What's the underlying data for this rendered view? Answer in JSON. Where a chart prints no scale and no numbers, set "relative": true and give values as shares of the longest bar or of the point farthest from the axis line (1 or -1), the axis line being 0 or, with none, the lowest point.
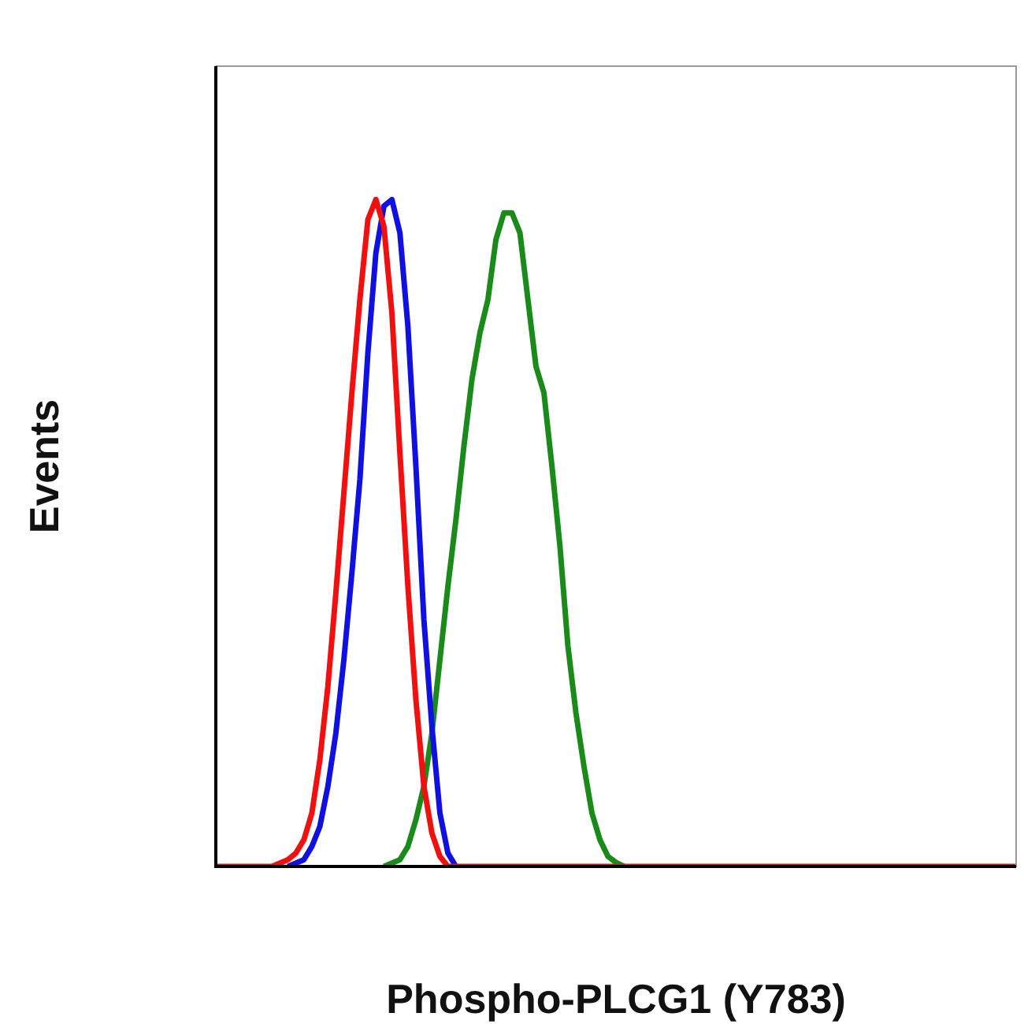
{
  "chart_data": {
    "type": "line",
    "relative": true,
    "xlabel": "Phospho-PLCG1 (Y783)",
    "ylabel": "Events",
    "legend": false,
    "marker": "none",
    "line_style": "solid",
    "categories": [
      null,
      null,
      null,
      null,
      null,
      null,
      null,
      null,
      null,
      null,
      null,
      null,
      null,
      null,
      null,
      null,
      null,
      null,
      null,
      null,
      null,
      null,
      null,
      null,
      null,
      null,
      null,
      null,
      null,
      null,
      null,
      null,
      null,
      null,
      null,
      null,
      null,
      null,
      null,
      null,
      null,
      null,
      null,
      null,
      null,
      null,
      null,
      null,
      null,
      null,
      null,
      null,
      null,
      null,
      null,
      null,
      null,
      null,
      null,
      null,
      null,
      null,
      null,
      null,
      null,
      null,
      null,
      null,
      null,
      null,
      null,
      null,
      null,
      null,
      null,
      null,
      null,
      null,
      null,
      null,
      null,
      null,
      null,
      null,
      null,
      null,
      null,
      null,
      null,
      null,
      null,
      null,
      null,
      null,
      null,
      null,
      null,
      null,
      null,
      null,
      null
    ],
    "series": [
      {
        "color": "#f01010",
        "values": [
          0,
          0,
          0,
          0,
          0,
          0,
          0,
          0,
          0.005,
          0.01,
          0.02,
          0.04,
          0.08,
          0.16,
          0.27,
          0.41,
          0.56,
          0.71,
          0.85,
          0.97,
          1,
          0.96,
          0.83,
          0.62,
          0.42,
          0.25,
          0.12,
          0.05,
          0.015,
          0,
          0,
          0,
          0,
          0,
          0,
          0,
          0,
          0,
          0,
          0,
          0,
          0,
          0,
          0,
          0,
          0,
          0,
          0,
          0,
          0,
          0,
          0,
          0,
          0,
          0,
          0,
          0,
          0,
          0,
          0,
          0,
          0,
          0,
          0,
          0,
          0,
          0,
          0,
          0,
          0,
          0,
          0,
          0,
          0,
          0,
          0,
          0,
          0,
          0,
          0,
          0,
          0,
          0,
          0,
          0,
          0,
          0,
          0,
          0,
          0,
          0,
          0,
          0,
          0,
          0,
          0,
          0,
          0,
          0,
          0,
          0
        ]
      },
      {
        "color": "#1010e0",
        "values": [
          null,
          null,
          null,
          null,
          null,
          null,
          null,
          null,
          null,
          0,
          0.005,
          0.01,
          0.03,
          0.06,
          0.12,
          0.2,
          0.31,
          0.44,
          0.58,
          0.77,
          0.92,
          0.99,
          1,
          0.95,
          0.81,
          0.6,
          0.37,
          0.21,
          0.08,
          0.02,
          0,
          null,
          null,
          null,
          null,
          null,
          null,
          null,
          null,
          null,
          null,
          null,
          null,
          null,
          null,
          null,
          null,
          null,
          null,
          null,
          null,
          null,
          null,
          null,
          null,
          null,
          null,
          null,
          null,
          null,
          null,
          null,
          null,
          null,
          null,
          null,
          null,
          null,
          null,
          null,
          null,
          null,
          null,
          null,
          null,
          null,
          null,
          null,
          null,
          null,
          null,
          null,
          null,
          null,
          null,
          null,
          null,
          null,
          null,
          null,
          null,
          null,
          null,
          null,
          null,
          null,
          null,
          null,
          null,
          null,
          null
        ]
      },
      {
        "color": "#1a8a1a",
        "values": [
          null,
          null,
          null,
          null,
          null,
          null,
          null,
          null,
          null,
          null,
          null,
          null,
          null,
          null,
          null,
          null,
          null,
          null,
          null,
          null,
          null,
          0,
          0.005,
          0.01,
          0.03,
          0.07,
          0.12,
          0.2,
          0.31,
          0.42,
          0.52,
          0.63,
          0.73,
          0.8,
          0.85,
          0.94,
          0.98,
          0.98,
          0.95,
          0.85,
          0.75,
          0.71,
          0.6,
          0.48,
          0.33,
          0.23,
          0.15,
          0.08,
          0.04,
          0.015,
          0.006,
          0,
          null,
          null,
          null,
          null,
          null,
          null,
          null,
          null,
          null,
          null,
          null,
          null,
          null,
          null,
          null,
          null,
          null,
          null,
          null,
          null,
          null,
          null,
          null,
          null,
          null,
          null,
          null,
          null,
          null,
          null,
          null,
          null,
          null,
          null,
          null,
          null,
          null,
          null,
          null,
          null,
          null,
          null,
          null,
          null,
          null,
          null,
          null,
          null,
          null
        ]
      }
    ]
  }
}
